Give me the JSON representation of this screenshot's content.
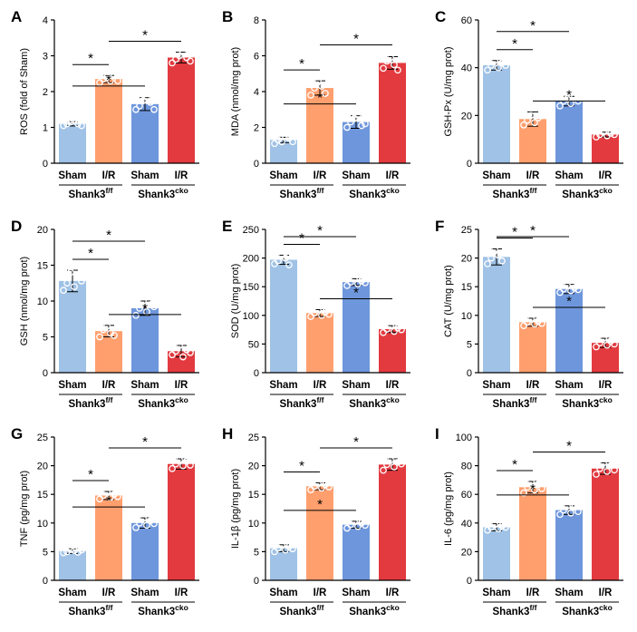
{
  "figure": {
    "colors": {
      "sham_ff": "#9fc2e6",
      "ir_ff": "#ff9f6e",
      "sham_cko": "#6e96dc",
      "ir_cko": "#e23a3f",
      "bar_edge": "#000000"
    },
    "group_labels": [
      "Sham",
      "I/R",
      "Sham",
      "I/R"
    ],
    "genotype_ff": {
      "base": "Shank3",
      "sup": "f/f"
    },
    "genotype_cko": {
      "base": "Shank3",
      "sup": "cko"
    },
    "significance_marker": "*"
  },
  "chart_data": [
    {
      "panel": "A",
      "type": "bar",
      "ylabel": "ROS (fold of Sham)",
      "ylim": [
        0,
        4
      ],
      "yticks": [
        0,
        1,
        2,
        3,
        4
      ],
      "categories": [
        "Sham",
        "I/R",
        "Sham",
        "I/R"
      ],
      "values": [
        1.1,
        2.35,
        1.65,
        2.95
      ],
      "errors": [
        0.06,
        0.1,
        0.18,
        0.15
      ],
      "points": [
        [
          1.05,
          1.1,
          1.15,
          1.2,
          1.1,
          1.05
        ],
        [
          2.25,
          2.35,
          2.4,
          2.3,
          2.45,
          2.3
        ],
        [
          1.5,
          1.6,
          1.75,
          1.85,
          1.7,
          1.5
        ],
        [
          2.8,
          2.9,
          3.0,
          3.1,
          2.95,
          2.85
        ]
      ],
      "comparisons": [
        [
          0,
          1
        ],
        [
          0,
          2
        ],
        [
          1,
          3
        ]
      ]
    },
    {
      "panel": "B",
      "type": "bar",
      "ylabel": "MDA (nmol/mg prot)",
      "ylim": [
        0,
        8
      ],
      "yticks": [
        0,
        2,
        4,
        6,
        8
      ],
      "categories": [
        "Sham",
        "I/R",
        "Sham",
        "I/R"
      ],
      "values": [
        1.3,
        4.2,
        2.3,
        5.6
      ],
      "errors": [
        0.15,
        0.4,
        0.35,
        0.35
      ],
      "points": [
        [
          1.1,
          1.3,
          1.2,
          1.5,
          1.4,
          1.2
        ],
        [
          3.8,
          4.2,
          4.6,
          4.3,
          3.9,
          4.5
        ],
        [
          2.0,
          2.3,
          2.5,
          2.7,
          2.1,
          2.2
        ],
        [
          5.3,
          5.7,
          5.9,
          5.5,
          5.2,
          6.0
        ]
      ],
      "comparisons": [
        [
          0,
          1
        ],
        [
          0,
          2
        ],
        [
          1,
          3
        ]
      ]
    },
    {
      "panel": "C",
      "type": "bar",
      "ylabel": "GSH-Px (U/mg prot)",
      "ylim": [
        0,
        60
      ],
      "yticks": [
        0,
        20,
        40,
        60
      ],
      "categories": [
        "Sham",
        "I/R",
        "Sham",
        "I/R"
      ],
      "values": [
        41,
        18.5,
        26,
        12
      ],
      "errors": [
        2,
        3,
        2,
        1
      ],
      "points": [
        [
          39,
          41,
          43,
          40,
          42,
          41
        ],
        [
          16,
          18,
          20,
          17,
          19,
          21
        ],
        [
          24,
          26,
          27,
          25,
          28,
          26
        ],
        [
          11,
          12,
          13,
          11.5,
          12.5,
          12
        ]
      ],
      "comparisons": [
        [
          0,
          1
        ],
        [
          0,
          2
        ],
        [
          1,
          3
        ]
      ]
    },
    {
      "panel": "D",
      "type": "bar",
      "ylabel": "GSH (nmol/mg prot)",
      "ylim": [
        0,
        20
      ],
      "yticks": [
        0,
        5,
        10,
        15,
        20
      ],
      "categories": [
        "Sham",
        "I/R",
        "Sham",
        "I/R"
      ],
      "values": [
        12.8,
        5.8,
        9.0,
        3.0
      ],
      "errors": [
        1.5,
        0.8,
        1.0,
        0.8
      ],
      "points": [
        [
          11.5,
          12.5,
          14.0,
          12.0,
          13.5,
          12.8
        ],
        [
          5.0,
          6.0,
          6.5,
          5.5,
          5.2,
          6.3
        ],
        [
          8.0,
          9.0,
          10.0,
          8.5,
          9.5,
          9.2
        ],
        [
          2.5,
          3.0,
          3.8,
          2.2,
          3.2,
          2.8
        ]
      ],
      "comparisons": [
        [
          0,
          1
        ],
        [
          0,
          2
        ],
        [
          1,
          3
        ]
      ]
    },
    {
      "panel": "E",
      "type": "bar",
      "ylabel": "SOD (U/mg prot)",
      "ylim": [
        0,
        250
      ],
      "yticks": [
        0,
        50,
        100,
        150,
        200,
        250
      ],
      "categories": [
        "Sham",
        "I/R",
        "Sham",
        "I/R"
      ],
      "values": [
        197,
        104,
        158,
        76
      ],
      "errors": [
        8,
        6,
        6,
        6
      ],
      "points": [
        [
          190,
          195,
          205,
          200,
          188,
          204
        ],
        [
          98,
          104,
          110,
          100,
          106,
          102
        ],
        [
          152,
          158,
          165,
          155,
          160,
          157
        ],
        [
          70,
          76,
          82,
          72,
          78,
          75
        ]
      ],
      "comparisons": [
        [
          0,
          1
        ],
        [
          0,
          2
        ],
        [
          1,
          3
        ]
      ]
    },
    {
      "panel": "F",
      "type": "bar",
      "ylabel": "CAT (U/mg prot)",
      "ylim": [
        0,
        25
      ],
      "yticks": [
        0,
        5,
        10,
        15,
        20,
        25
      ],
      "categories": [
        "Sham",
        "I/R",
        "Sham",
        "I/R"
      ],
      "values": [
        20.2,
        8.8,
        14.6,
        5.2
      ],
      "errors": [
        1.4,
        0.7,
        0.8,
        0.8
      ],
      "points": [
        [
          19.0,
          20.0,
          21.5,
          20.5,
          19.5,
          21.0
        ],
        [
          8.2,
          8.8,
          9.4,
          8.5,
          9.0,
          8.6
        ],
        [
          14.0,
          14.6,
          15.2,
          14.3,
          14.8,
          14.5
        ],
        [
          4.5,
          5.2,
          6.0,
          4.8,
          5.5,
          5.0
        ]
      ],
      "comparisons": [
        [
          0,
          1
        ],
        [
          0,
          2
        ],
        [
          1,
          3
        ]
      ]
    },
    {
      "panel": "G",
      "type": "bar",
      "ylabel": "TNF  (pg/mg prot)",
      "ylim": [
        0,
        25
      ],
      "yticks": [
        0,
        5,
        10,
        15,
        20,
        25
      ],
      "categories": [
        "Sham",
        "I/R",
        "Sham",
        "I/R"
      ],
      "values": [
        5.1,
        14.8,
        10.0,
        20.3
      ],
      "errors": [
        0.4,
        0.7,
        0.9,
        0.9
      ],
      "points": [
        [
          4.8,
          5.0,
          5.4,
          5.2,
          4.9,
          5.3
        ],
        [
          14.2,
          14.8,
          15.5,
          14.5,
          15.0,
          14.6
        ],
        [
          9.2,
          10.0,
          10.8,
          9.6,
          10.4,
          9.9
        ],
        [
          19.5,
          20.3,
          21.0,
          20.0,
          20.8,
          20.1
        ]
      ],
      "comparisons": [
        [
          0,
          1
        ],
        [
          0,
          2
        ],
        [
          1,
          3
        ]
      ]
    },
    {
      "panel": "H",
      "type": "bar",
      "ylabel": "IL-1β (pg/mg prot)",
      "ylim": [
        0,
        25
      ],
      "yticks": [
        0,
        5,
        10,
        15,
        20,
        25
      ],
      "categories": [
        "Sham",
        "I/R",
        "Sham",
        "I/R"
      ],
      "values": [
        5.6,
        16.4,
        9.7,
        20.2
      ],
      "errors": [
        0.6,
        0.6,
        0.6,
        1.0
      ],
      "points": [
        [
          5.0,
          5.6,
          6.2,
          5.3,
          5.9,
          5.5
        ],
        [
          15.8,
          16.4,
          17.0,
          16.1,
          16.7,
          16.3
        ],
        [
          9.1,
          9.7,
          10.3,
          9.4,
          10.0,
          9.6
        ],
        [
          19.2,
          20.2,
          21.0,
          19.8,
          20.6,
          20.3
        ]
      ],
      "comparisons": [
        [
          0,
          1
        ],
        [
          0,
          2
        ],
        [
          1,
          3
        ]
      ]
    },
    {
      "panel": "I",
      "type": "bar",
      "ylabel": "IL-6 (pg/mg prot)",
      "ylim": [
        0,
        100
      ],
      "yticks": [
        0,
        20,
        40,
        60,
        80,
        100
      ],
      "categories": [
        "Sham",
        "I/R",
        "Sham",
        "I/R"
      ],
      "values": [
        37,
        65,
        49,
        78
      ],
      "errors": [
        2.5,
        4,
        3,
        4
      ],
      "points": [
        [
          35,
          37,
          39,
          36,
          38,
          37
        ],
        [
          61,
          65,
          69,
          63,
          67,
          64
        ],
        [
          46,
          49,
          52,
          47,
          51,
          48
        ],
        [
          74,
          78,
          82,
          76,
          80,
          77
        ]
      ],
      "comparisons": [
        [
          0,
          1
        ],
        [
          0,
          2
        ],
        [
          1,
          3
        ]
      ]
    }
  ]
}
